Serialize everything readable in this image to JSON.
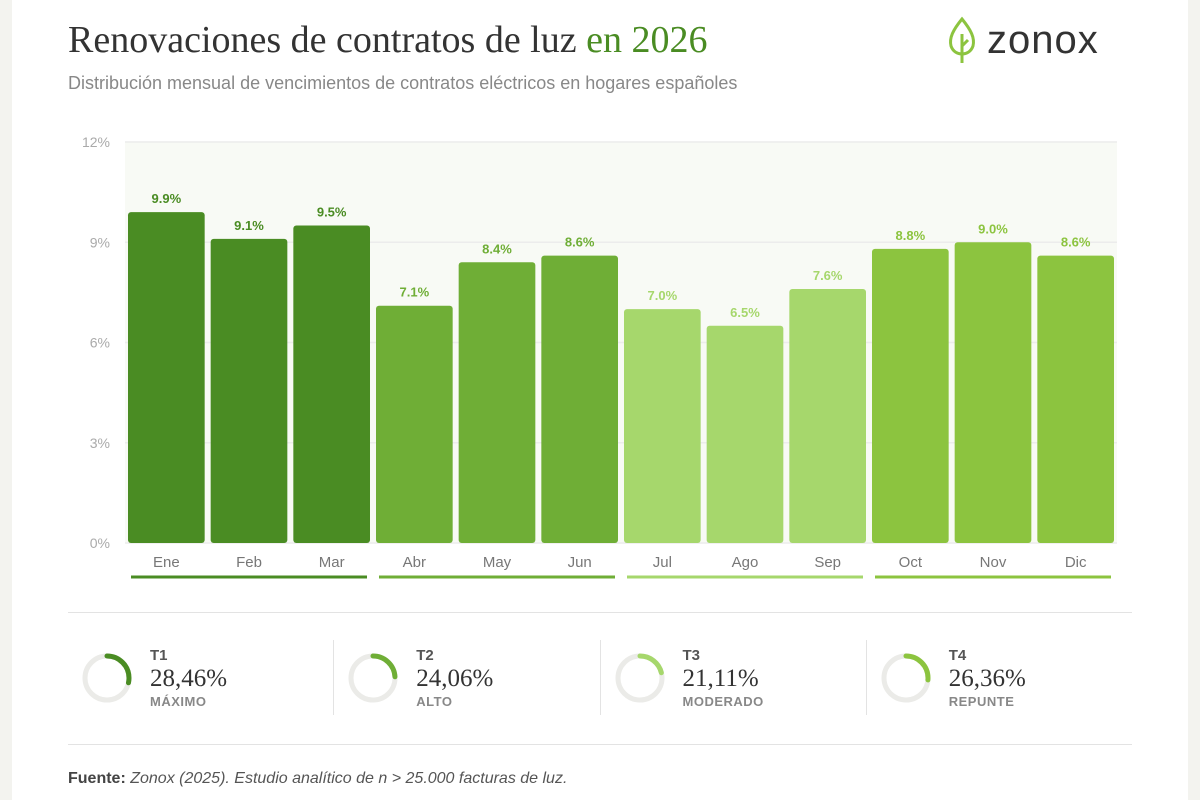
{
  "header": {
    "title_main": "Renovaciones de contratos de luz",
    "title_accent": "en 2026",
    "subtitle": "Distribución mensual de vencimientos de contratos eléctricos en hogares españoles",
    "logo_text": "zonox",
    "logo_icon": "leaf-icon"
  },
  "colors": {
    "q1": "#4a8c23",
    "q2": "#6fae36",
    "q3": "#a6d76c",
    "q4": "#8cc43f"
  },
  "chart_data": {
    "type": "bar",
    "title": "Renovaciones de contratos de luz en 2026",
    "xlabel": "",
    "ylabel": "",
    "ylim": [
      0,
      12
    ],
    "yticks": [
      "0%",
      "3%",
      "6%",
      "9%",
      "12%"
    ],
    "ytick_values": [
      0,
      3,
      6,
      9,
      12
    ],
    "grid": true,
    "categories": [
      "Ene",
      "Feb",
      "Mar",
      "Abr",
      "May",
      "Jun",
      "Jul",
      "Ago",
      "Sep",
      "Oct",
      "Nov",
      "Dic"
    ],
    "values": [
      9.9,
      9.1,
      9.5,
      7.1,
      8.4,
      8.6,
      7.0,
      6.5,
      7.6,
      8.8,
      9.0,
      8.6
    ],
    "labels": [
      "9.9%",
      "9.1%",
      "9.5%",
      "7.1%",
      "8.4%",
      "8.6%",
      "7.0%",
      "6.5%",
      "7.6%",
      "8.8%",
      "9.0%",
      "8.6%"
    ],
    "quarters": [
      "q1",
      "q1",
      "q1",
      "q2",
      "q2",
      "q2",
      "q3",
      "q3",
      "q3",
      "q4",
      "q4",
      "q4"
    ]
  },
  "kpis": [
    {
      "quarter": "T1",
      "value": "28,46%",
      "percent": 28.46,
      "label": "MÁXIMO",
      "color": "#4a8c23"
    },
    {
      "quarter": "T2",
      "value": "24,06%",
      "percent": 24.06,
      "label": "ALTO",
      "color": "#6fae36"
    },
    {
      "quarter": "T3",
      "value": "21,11%",
      "percent": 21.11,
      "label": "MODERADO",
      "color": "#a6d76c"
    },
    {
      "quarter": "T4",
      "value": "26,36%",
      "percent": 26.36,
      "label": "REPUNTE",
      "color": "#8cc43f"
    }
  ],
  "footer": {
    "source_label": "Fuente:",
    "source_text": "Zonox (2025). Estudio analítico de n > 25.000 facturas de luz."
  }
}
